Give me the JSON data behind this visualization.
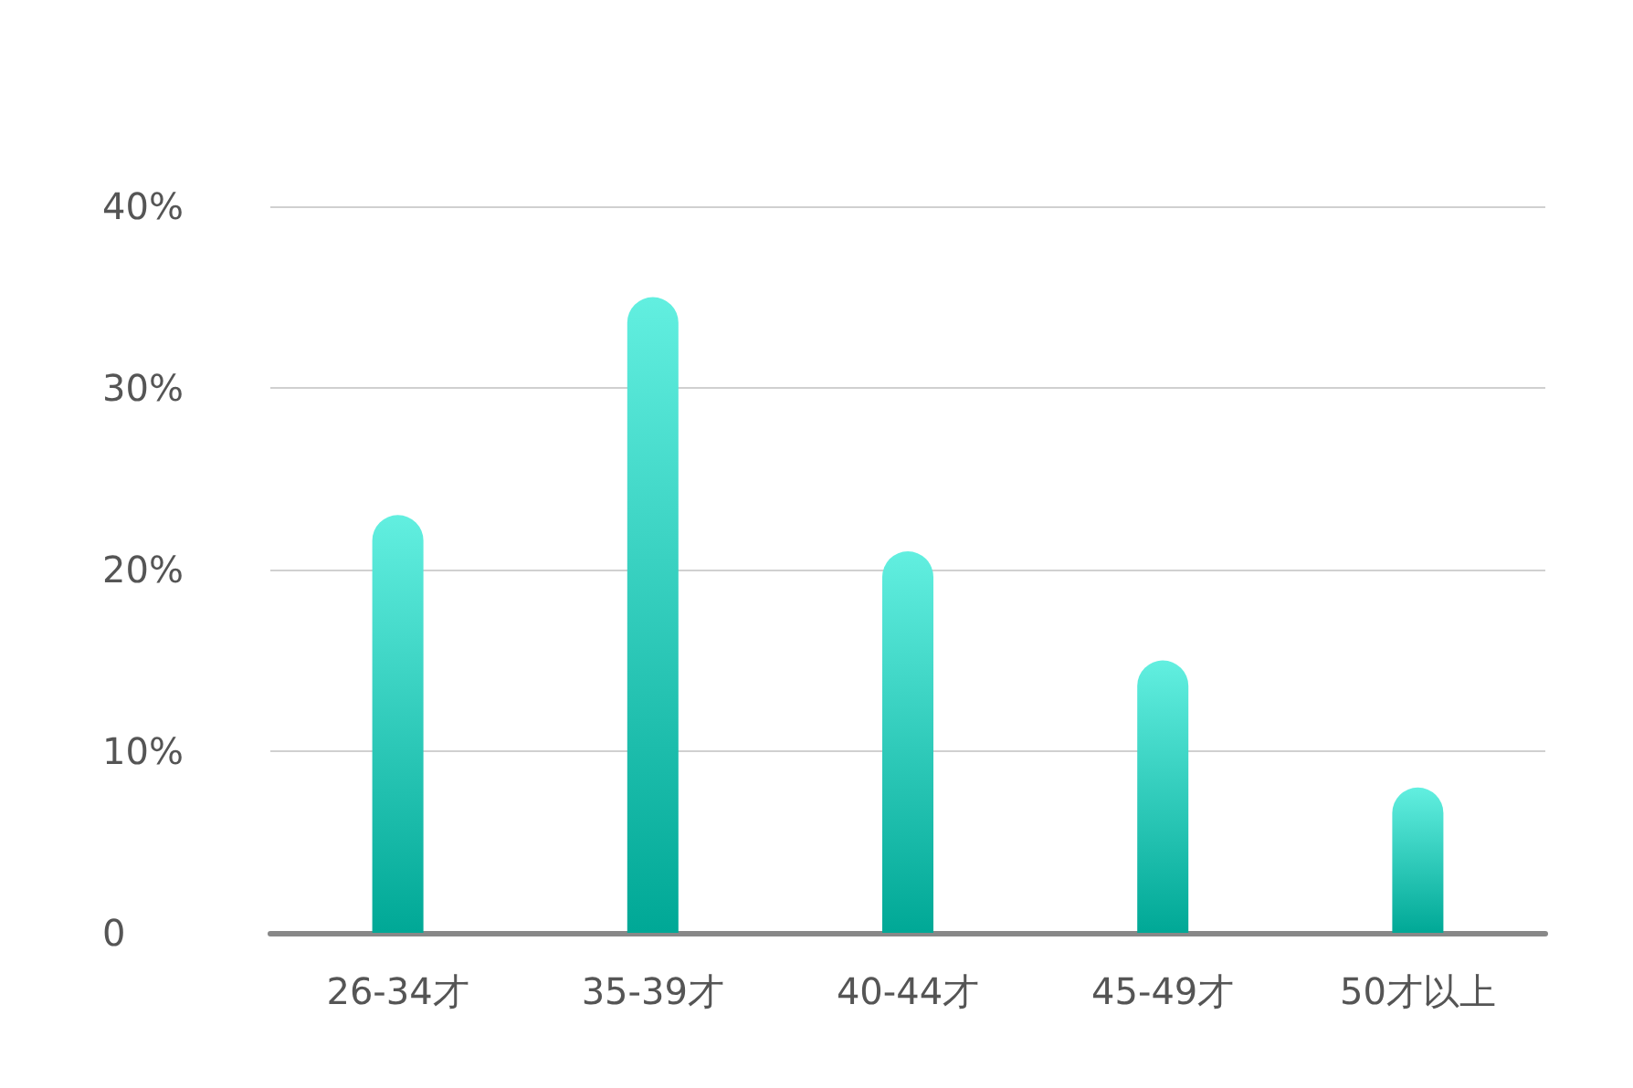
{
  "chart_data": {
    "type": "bar",
    "categories": [
      "26-34才",
      "35-39才",
      "40-44才",
      "45-49才",
      "50才以上"
    ],
    "values": [
      23,
      35,
      21,
      15,
      8
    ],
    "color": "#00a896",
    "ylim": [
      0,
      40
    ],
    "yticks": [
      {
        "value": 0,
        "label": "0"
      },
      {
        "value": 10,
        "label": "10%"
      },
      {
        "value": 20,
        "label": "20%"
      },
      {
        "value": 30,
        "label": "30%"
      },
      {
        "value": 40,
        "label": "40%"
      }
    ],
    "grid": "y"
  }
}
